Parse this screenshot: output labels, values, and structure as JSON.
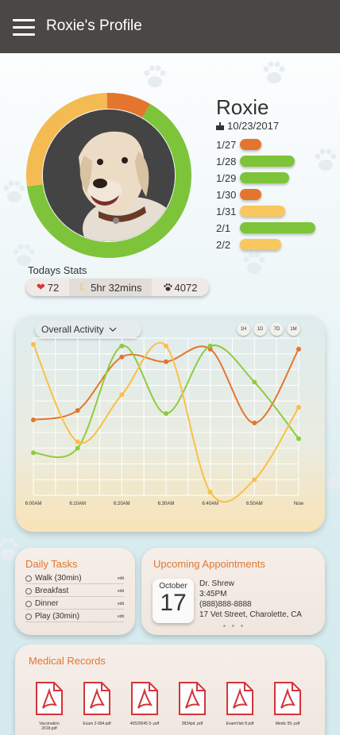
{
  "header": {
    "title": "Roxie's Profile",
    "menu_icon": "hamburger-icon"
  },
  "profile": {
    "name": "Roxie",
    "birthday": "10/23/2017",
    "birthday_icon": "cake-icon",
    "ring_colors": [
      "#7dc43a",
      "#f0b84f",
      "#e4752f"
    ]
  },
  "activity_log": [
    {
      "date": "1/27",
      "level": "low",
      "color": "#e4752f"
    },
    {
      "date": "1/28",
      "level": "high",
      "color": "#7dc43a"
    },
    {
      "date": "1/29",
      "level": "high",
      "color": "#7dc43a"
    },
    {
      "date": "1/30",
      "level": "low",
      "color": "#e4752f"
    },
    {
      "date": "1/31",
      "level": "medium",
      "color": "#f8c85e"
    },
    {
      "date": "2/1",
      "level": "high",
      "color": "#7dc43a"
    },
    {
      "date": "2/2",
      "level": "medium",
      "color": "#f8c85e"
    }
  ],
  "stats": {
    "label": "Todays Stats",
    "heart_rate": "72",
    "sleep": "5hr 32mins",
    "steps": "4072",
    "icons": [
      "heart-icon",
      "moon-icon",
      "paw-icon"
    ]
  },
  "chart_controls": {
    "dropdown_label": "Overall Activity",
    "ranges": [
      "1H",
      "1D",
      "7D",
      "1M"
    ]
  },
  "chart_data": {
    "type": "line",
    "x": [
      "6:00AM",
      "6:10AM",
      "6:20AM",
      "6:30AM",
      "6:40AM",
      "6:50AM",
      "Now"
    ],
    "series": [
      {
        "color": "#e4752f",
        "values": [
          0.48,
          0.54,
          0.88,
          0.85,
          0.93,
          0.46,
          0.93
        ]
      },
      {
        "color": "#8fcb3e",
        "values": [
          0.27,
          0.3,
          0.95,
          0.52,
          0.95,
          0.72,
          0.36
        ]
      },
      {
        "color": "#fbbf46",
        "values": [
          0.96,
          0.34,
          0.64,
          0.95,
          0.02,
          0.1,
          0.56
        ]
      }
    ],
    "grid": true
  },
  "daily_tasks": {
    "title": "Daily Tasks",
    "items": [
      "Walk (30min)",
      "Breakfast",
      "Dinner",
      "Play (30min)"
    ],
    "edit_label": "edit"
  },
  "appointments": {
    "title": "Upcoming Appointments",
    "month": "October",
    "day": "17",
    "doctor": "Dr. Shrew",
    "time": "3:45PM",
    "phone": "(888)888-8888",
    "address": "17 Vet Street, Charolette, CA"
  },
  "medical_records": {
    "title": "Medical Records",
    "files": [
      "Vaccination 2018.pdf",
      "Exam 2-994.pdf",
      "40529045 5-.pdf",
      "3834pd .pdf",
      "ExamVisit 8 pdf",
      "Medic 55-.pdf"
    ]
  }
}
